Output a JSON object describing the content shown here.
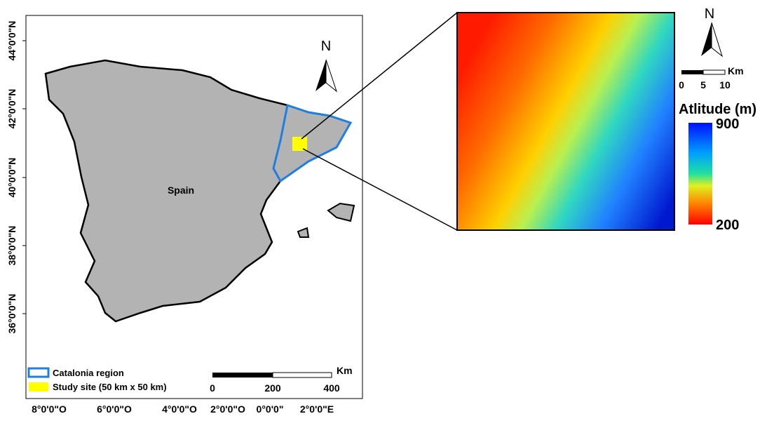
{
  "map": {
    "country_label": "Spain",
    "lat_labels": [
      "44°0'0\"N",
      "42°0'0\"N",
      "40°0'0\"N",
      "38°0'0\"N",
      "36°0'0\"N"
    ],
    "lon_labels": [
      "8°0'0\"O",
      "6°0'0\"O",
      "4°0'0\"O",
      "2°0'0\"O",
      "0°0'0\"",
      "2°0'0\"E"
    ],
    "north_label": "N",
    "scale_bar": {
      "unit": "Km",
      "labels": [
        "0",
        "200",
        "400"
      ]
    },
    "legend": [
      "Catalonia region",
      "Study site (50 km x 50 km)"
    ]
  },
  "inset": {
    "north_label": "N",
    "scale_bar": {
      "unit": "Km",
      "labels": [
        "0",
        "5",
        "10"
      ]
    },
    "colorbar": {
      "title": "Atlitude (m)",
      "max": 900,
      "min": 200
    }
  }
}
